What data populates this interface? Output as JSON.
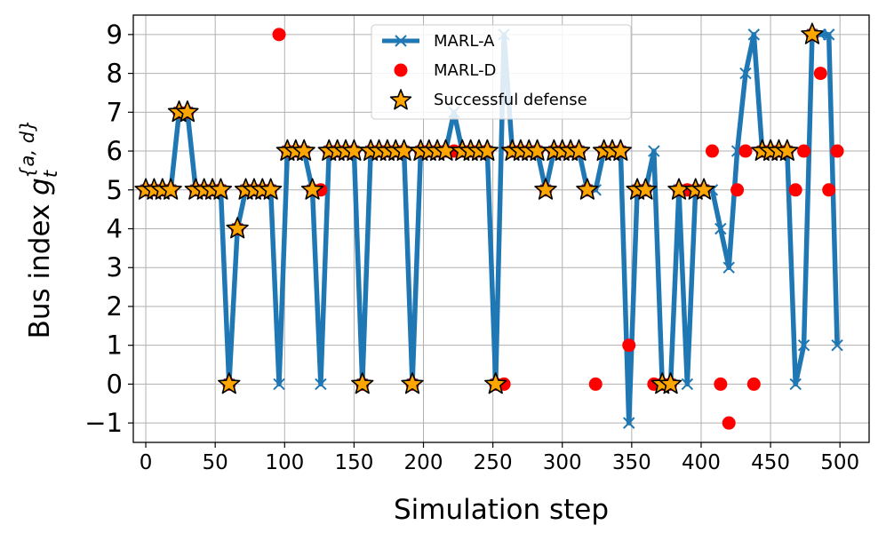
{
  "chart_data": {
    "type": "line",
    "xlabel": "Simulation step",
    "ylabel_main": "Bus index ",
    "ylabel_symbol": "g",
    "ylabel_sub": "t",
    "ylabel_sup": "{a, d}",
    "xlim": [
      -9,
      521
    ],
    "ylim": [
      -1.5,
      9.5
    ],
    "xticks": [
      0,
      50,
      100,
      150,
      200,
      250,
      300,
      350,
      400,
      450,
      500
    ],
    "yticks": [
      -1,
      0,
      1,
      2,
      3,
      4,
      5,
      6,
      7,
      8,
      9
    ],
    "xtick_labels": [
      "0",
      "50",
      "100",
      "150",
      "200",
      "250",
      "300",
      "350",
      "400",
      "450",
      "500"
    ],
    "ytick_labels": [
      "−1",
      "0",
      "1",
      "2",
      "3",
      "4",
      "5",
      "6",
      "7",
      "8",
      "9"
    ],
    "grid": true,
    "legend_position": "top-center",
    "legend": [
      "MARL-A",
      "MARL-D",
      "Successful defense"
    ],
    "colors": {
      "attacker_line": "#1f77b4",
      "defender_dot": "#ff0000",
      "star_fill": "#ffa500",
      "star_edge": "#000000"
    },
    "series": [
      {
        "name": "MARL-A",
        "style": "line-x",
        "x": [
          0,
          6,
          12,
          18,
          24,
          30,
          36,
          42,
          48,
          54,
          60,
          66,
          72,
          78,
          84,
          90,
          96,
          102,
          108,
          114,
          120,
          126,
          132,
          138,
          144,
          150,
          156,
          162,
          168,
          174,
          180,
          186,
          192,
          198,
          204,
          210,
          216,
          222,
          228,
          234,
          240,
          246,
          252,
          258,
          264,
          270,
          276,
          282,
          288,
          294,
          300,
          306,
          312,
          318,
          324,
          330,
          336,
          342,
          348,
          354,
          360,
          366,
          372,
          378,
          384,
          390,
          396,
          402,
          408,
          414,
          420,
          426,
          432,
          438,
          444,
          450,
          456,
          462,
          468,
          474,
          480,
          486,
          492,
          498
        ],
        "y": [
          5,
          5,
          5,
          5,
          7,
          7,
          5,
          5,
          5,
          5,
          0,
          4,
          5,
          5,
          5,
          5,
          0,
          6,
          6,
          6,
          5,
          0,
          6,
          6,
          6,
          6,
          0,
          6,
          6,
          6,
          6,
          6,
          0,
          6,
          6,
          6,
          6,
          7,
          6,
          6,
          6,
          6,
          0,
          9,
          6,
          6,
          6,
          6,
          5,
          6,
          6,
          6,
          6,
          5,
          5,
          6,
          6,
          6,
          -1,
          5,
          5,
          6,
          0,
          0,
          5,
          0,
          5,
          5,
          5,
          4,
          3,
          6,
          8,
          9,
          6,
          6,
          6,
          6,
          0,
          1,
          9,
          9,
          9,
          1
        ]
      },
      {
        "name": "MARL-D",
        "style": "dot",
        "x": [
          0,
          6,
          12,
          18,
          24,
          30,
          36,
          42,
          48,
          54,
          60,
          66,
          72,
          78,
          84,
          90,
          96,
          102,
          108,
          114,
          120,
          126,
          132,
          138,
          144,
          150,
          156,
          162,
          168,
          174,
          180,
          186,
          192,
          198,
          204,
          210,
          216,
          222,
          228,
          234,
          240,
          246,
          252,
          258,
          264,
          270,
          276,
          282,
          288,
          294,
          300,
          306,
          312,
          318,
          324,
          330,
          336,
          342,
          348,
          354,
          360,
          366,
          372,
          378,
          384,
          390,
          396,
          402,
          408,
          414,
          420,
          426,
          432,
          438,
          444,
          450,
          456,
          462,
          468,
          474,
          480,
          486,
          492,
          498
        ],
        "y": [
          5,
          5,
          5,
          5,
          7,
          7,
          5,
          5,
          5,
          5,
          0,
          4,
          5,
          5,
          5,
          5,
          9,
          6,
          6,
          6,
          5,
          5,
          6,
          6,
          6,
          6,
          0,
          6,
          6,
          6,
          6,
          6,
          0,
          6,
          6,
          6,
          6,
          6,
          6,
          6,
          6,
          6,
          0,
          0,
          6,
          6,
          6,
          6,
          5,
          6,
          6,
          6,
          6,
          5,
          0,
          6,
          6,
          6,
          1,
          5,
          5,
          0,
          0,
          0,
          5,
          5,
          5,
          5,
          6,
          0,
          -1,
          5,
          6,
          0,
          6,
          6,
          6,
          6,
          5,
          6,
          9,
          8,
          5,
          6
        ]
      },
      {
        "name": "Successful defense",
        "style": "star",
        "x": [
          0,
          6,
          12,
          18,
          24,
          30,
          36,
          42,
          48,
          54,
          60,
          66,
          72,
          78,
          84,
          90,
          102,
          108,
          114,
          120,
          132,
          138,
          144,
          150,
          156,
          162,
          168,
          174,
          180,
          186,
          192,
          198,
          204,
          210,
          216,
          228,
          234,
          240,
          246,
          252,
          264,
          270,
          276,
          282,
          288,
          294,
          300,
          306,
          312,
          318,
          330,
          336,
          342,
          354,
          360,
          372,
          378,
          384,
          396,
          402,
          444,
          450,
          456,
          462,
          480
        ],
        "y": [
          5,
          5,
          5,
          5,
          7,
          7,
          5,
          5,
          5,
          5,
          0,
          4,
          5,
          5,
          5,
          5,
          6,
          6,
          6,
          5,
          6,
          6,
          6,
          6,
          0,
          6,
          6,
          6,
          6,
          6,
          0,
          6,
          6,
          6,
          6,
          6,
          6,
          6,
          6,
          0,
          6,
          6,
          6,
          6,
          5,
          6,
          6,
          6,
          6,
          5,
          6,
          6,
          6,
          5,
          5,
          0,
          0,
          5,
          5,
          5,
          6,
          6,
          6,
          6,
          9
        ]
      }
    ]
  }
}
